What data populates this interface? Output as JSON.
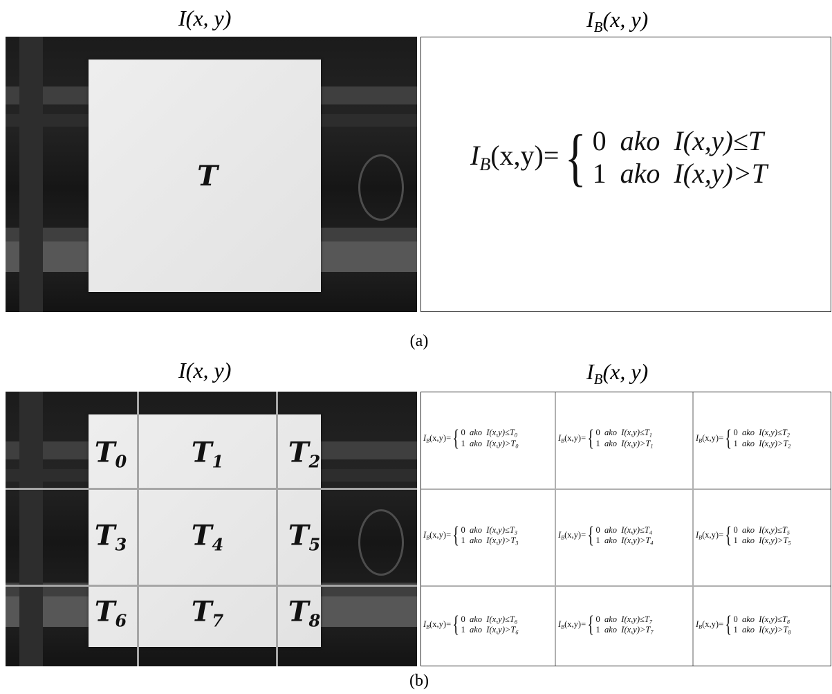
{
  "figure": {
    "top": {
      "heading_left": "I(x, y)",
      "heading_right": {
        "base": "I",
        "sub": "B",
        "rest": "(x, y)"
      },
      "region_label": "T",
      "formula": {
        "lhs_base": "I",
        "lhs_sub": "B",
        "lhs_rest": "(x,y)=",
        "case0_value": "0",
        "case1_value": "1",
        "word": "ako",
        "cond0": "I(x,y)≤T",
        "cond1": "I(x,y)>T"
      },
      "caption": "(a)"
    },
    "bottom": {
      "heading_left": "I(x, y)",
      "heading_right": {
        "base": "I",
        "sub": "B",
        "rest": "(x, y)"
      },
      "cells": [
        {
          "base": "T",
          "sub": "0"
        },
        {
          "base": "T",
          "sub": "1"
        },
        {
          "base": "T",
          "sub": "2"
        },
        {
          "base": "T",
          "sub": "3"
        },
        {
          "base": "T",
          "sub": "4"
        },
        {
          "base": "T",
          "sub": "5"
        },
        {
          "base": "T",
          "sub": "6"
        },
        {
          "base": "T",
          "sub": "7"
        },
        {
          "base": "T",
          "sub": "8"
        }
      ],
      "cell_formula": {
        "lhs_base": "I",
        "lhs_sub": "B",
        "lhs_rest": "(x,y)=",
        "case0_value": "0",
        "case1_value": "1",
        "word": "ako",
        "cond0_pre": "I(x,y)≤T",
        "cond1_pre": "I(x,y)>T"
      },
      "caption": "(b)"
    }
  },
  "colors": {
    "frame": "#2b2b2b",
    "grid": "#a6a6a6",
    "board": "#e8e8e8"
  }
}
